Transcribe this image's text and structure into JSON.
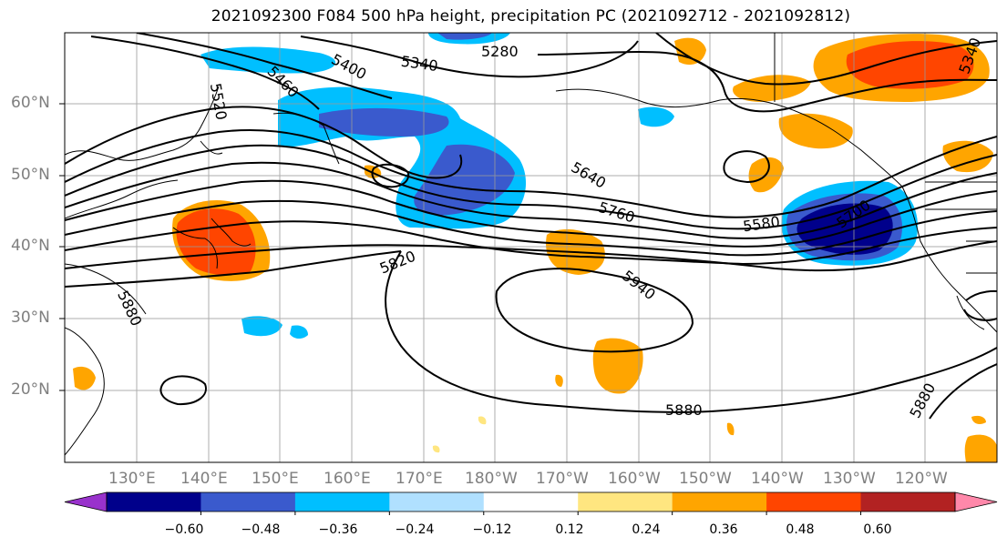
{
  "title": "2021092300 F084 500 hPa height, precipitation PC (2021092712 - 2021092812)",
  "map": {
    "projection": "equirectangular",
    "lon_range": [
      120,
      250
    ],
    "lat_range": [
      10,
      70
    ],
    "gridlines": true,
    "coastlines": true
  },
  "axes": {
    "lat_ticks": [
      "60°N",
      "50°N",
      "40°N",
      "30°N",
      "20°N"
    ],
    "lon_ticks": [
      "130°E",
      "140°E",
      "150°E",
      "160°E",
      "170°E",
      "180°W",
      "170°W",
      "160°W",
      "150°W",
      "140°W",
      "130°W",
      "120°W"
    ]
  },
  "contour_labels": [
    "5280",
    "5340",
    "5400",
    "5460",
    "5520",
    "5580",
    "5640",
    "5700",
    "5760",
    "5820",
    "5880",
    "5880",
    "5880",
    "5940",
    "5340"
  ],
  "colorbar": {
    "tick_labels": [
      "−0.60",
      "−0.48",
      "−0.36",
      "−0.24",
      "−0.12",
      "0.12",
      "0.24",
      "0.36",
      "0.48",
      "0.60"
    ],
    "colors": [
      "#9932cc",
      "#00008b",
      "#3a5acd",
      "#00bfff",
      "#b0e0ff",
      "#ffffff",
      "#ffe680",
      "#ffa500",
      "#ff4500",
      "#b22222",
      "#ff88aa"
    ],
    "extend": "both"
  }
}
